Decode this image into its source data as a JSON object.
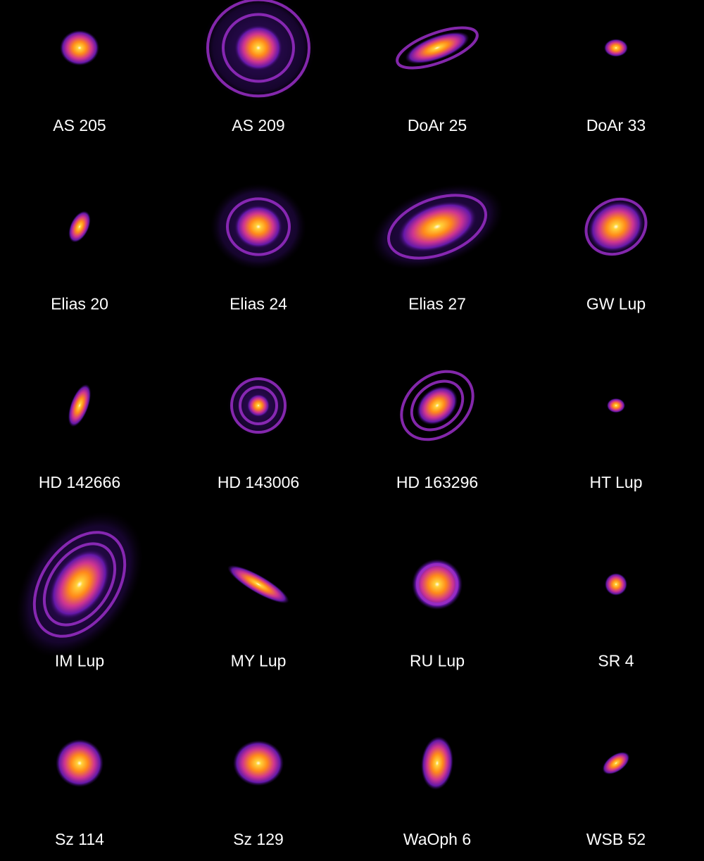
{
  "disks": [
    {
      "name": "AS 205"
    },
    {
      "name": "AS 209"
    },
    {
      "name": "DoAr 25"
    },
    {
      "name": "DoAr 33"
    },
    {
      "name": "Elias 20"
    },
    {
      "name": "Elias 24"
    },
    {
      "name": "Elias 27"
    },
    {
      "name": "GW Lup"
    },
    {
      "name": "HD 142666"
    },
    {
      "name": "HD 143006"
    },
    {
      "name": "HD 163296"
    },
    {
      "name": "HT Lup"
    },
    {
      "name": "IM Lup"
    },
    {
      "name": "MY Lup"
    },
    {
      "name": "RU Lup"
    },
    {
      "name": "SR 4"
    },
    {
      "name": "Sz 114"
    },
    {
      "name": "Sz 129"
    },
    {
      "name": "WaOph 6"
    },
    {
      "name": "WSB 52"
    }
  ]
}
